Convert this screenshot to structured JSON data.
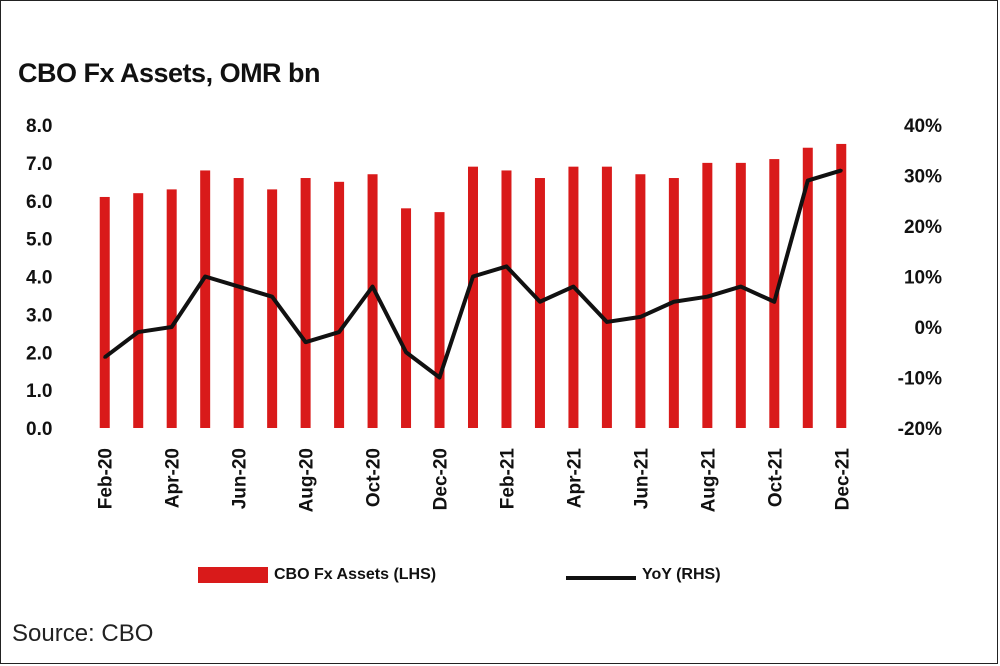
{
  "chart_data": {
    "type": "bar+line",
    "title": "CBO Fx Assets, OMR bn",
    "categories": [
      "Feb-20",
      "Mar-20",
      "Apr-20",
      "May-20",
      "Jun-20",
      "Jul-20",
      "Aug-20",
      "Sep-20",
      "Oct-20",
      "Nov-20",
      "Dec-20",
      "Jan-21",
      "Feb-21",
      "Mar-21",
      "Apr-21",
      "May-21",
      "Jun-21",
      "Jul-21",
      "Aug-21",
      "Sep-21",
      "Oct-21",
      "Nov-21",
      "Dec-21"
    ],
    "x_tick_labels": [
      "Feb-20",
      "Apr-20",
      "Jun-20",
      "Aug-20",
      "Oct-20",
      "Dec-20",
      "Feb-21",
      "Apr-21",
      "Jun-21",
      "Aug-21",
      "Oct-21",
      "Dec-21"
    ],
    "series": [
      {
        "name": "CBO Fx Assets (LHS)",
        "type": "bar",
        "axis": "left",
        "color": "#d91a1a",
        "values": [
          6.1,
          6.2,
          6.3,
          6.8,
          6.6,
          6.3,
          6.6,
          6.5,
          6.7,
          5.8,
          5.7,
          6.9,
          6.8,
          6.6,
          6.9,
          6.9,
          6.7,
          6.6,
          7.0,
          7.0,
          7.1,
          7.4,
          7.5
        ]
      },
      {
        "name": "YoY (RHS)",
        "type": "line",
        "axis": "right",
        "color": "#111111",
        "values": [
          -6,
          -1,
          0,
          10,
          8,
          6,
          -3,
          -1,
          8,
          -5,
          -10,
          10,
          12,
          5,
          8,
          1,
          2,
          5,
          6,
          8,
          5,
          29,
          31
        ]
      }
    ],
    "y_left": {
      "min": 0,
      "max": 8,
      "ticks": [
        "0.0",
        "1.0",
        "2.0",
        "3.0",
        "4.0",
        "5.0",
        "6.0",
        "7.0",
        "8.0"
      ]
    },
    "y_right": {
      "min": -20,
      "max": 40,
      "ticks": [
        "-20%",
        "-10%",
        "0%",
        "10%",
        "20%",
        "30%",
        "40%"
      ]
    },
    "legend": [
      {
        "label": "CBO Fx Assets (LHS)",
        "kind": "bar"
      },
      {
        "label": "YoY (RHS)",
        "kind": "line"
      }
    ],
    "legend_position": "bottom"
  },
  "source": "Source: CBO"
}
